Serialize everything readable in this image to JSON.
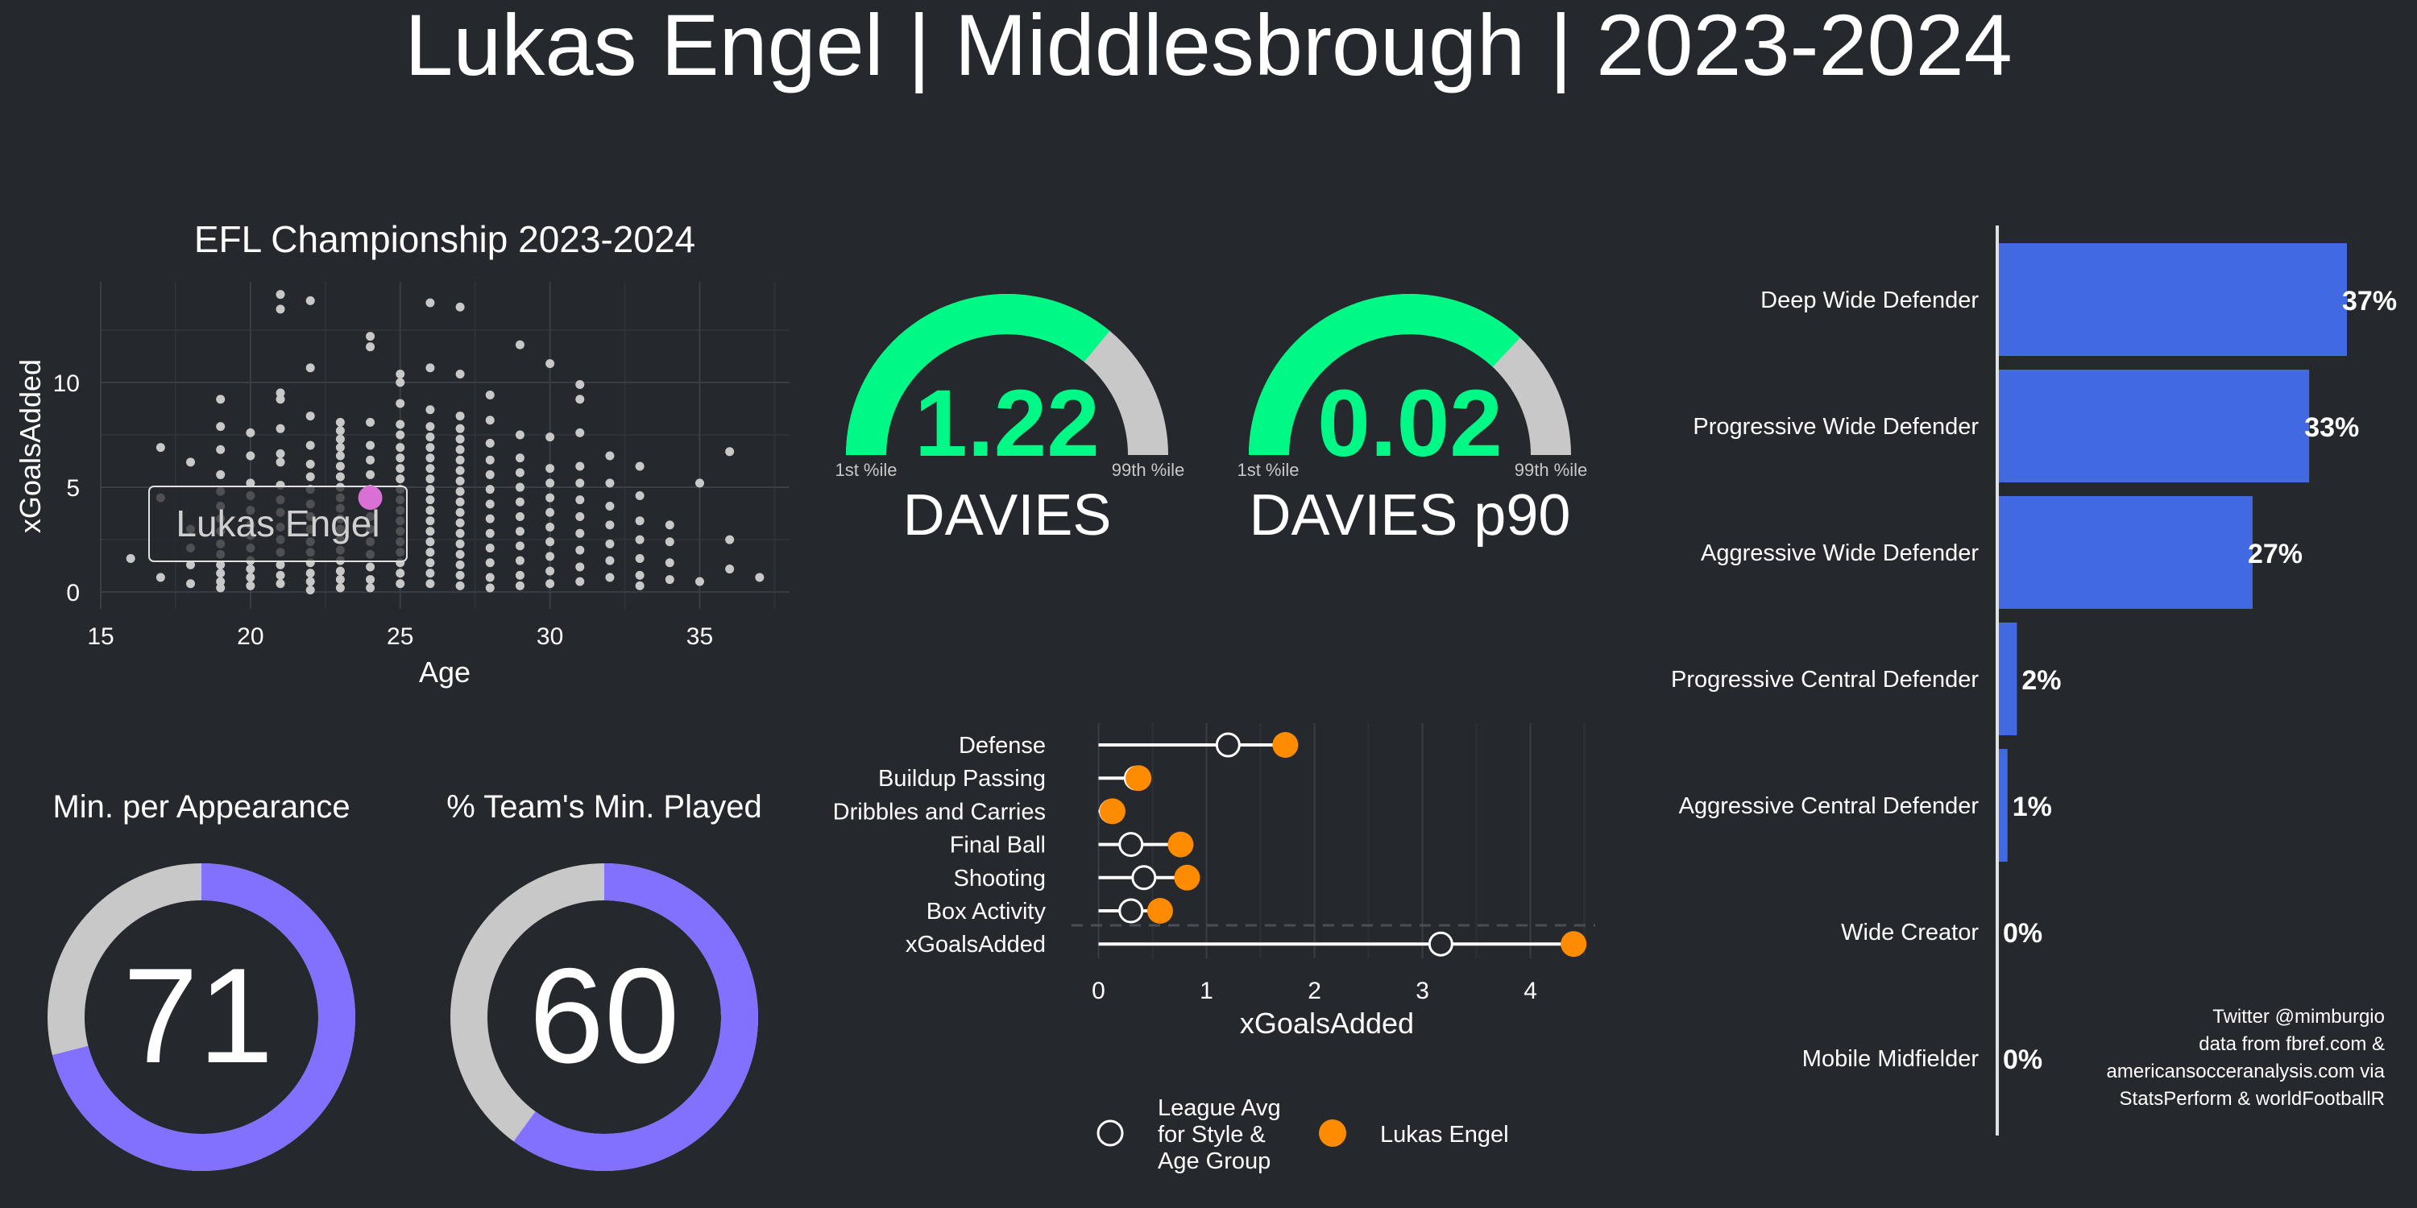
{
  "header": {
    "title": "Lukas Engel | Middlesbrough | 2023-2024"
  },
  "scatter_panel": {
    "title": "EFL Championship 2023-2024",
    "highlight_label": "Lukas Engel"
  },
  "gauges": [
    {
      "value_label": "1.22",
      "caption": "DAVIES",
      "min_label": "1st %ile",
      "max_label": "99th %ile",
      "percentile": 0.72
    },
    {
      "value_label": "0.02",
      "caption": "DAVIES p90",
      "min_label": "1st %ile",
      "max_label": "99th %ile",
      "percentile": 0.74
    }
  ],
  "donuts": [
    {
      "title": "Min. per Appearance",
      "value_label": "71",
      "percent": 71
    },
    {
      "title": "% Team's Min. Played",
      "value_label": "60",
      "percent": 60
    }
  ],
  "legend": {
    "league_avg": [
      "League Avg",
      "for Style &",
      "Age Group"
    ],
    "player": "Lukas Engel"
  },
  "source_note": [
    "Twitter @mimburgio",
    "data from fbref.com &",
    "americansocceranalysis.com via",
    "StatsPerform & worldFootballR"
  ],
  "colors": {
    "background": "#25282d",
    "gauge_fill": "#00f986",
    "gauge_track": "#c8c8c8",
    "donut_fill": "#8270ff",
    "donut_track": "#c8c8c8",
    "bar": "#4169e1",
    "player_dot": "#ff8c00",
    "highlight_dot": "#da70d6",
    "scatter_dot": "#c8c8c8"
  },
  "chart_data": [
    {
      "type": "scatter",
      "title": "EFL Championship 2023-2024",
      "xlabel": "Age",
      "ylabel": "xGoalsAdded",
      "xlim": [
        15,
        38
      ],
      "ylim": [
        -0.8,
        14.8
      ],
      "xticks": [
        15,
        20,
        25,
        30,
        35
      ],
      "yticks": [
        0,
        5,
        10
      ],
      "grid": true,
      "points": [
        [
          16,
          1.6
        ],
        [
          17,
          0.7
        ],
        [
          17,
          6.9
        ],
        [
          17,
          4.5
        ],
        [
          18,
          1.3
        ],
        [
          18,
          2.1
        ],
        [
          18,
          0.4
        ],
        [
          18,
          6.2
        ],
        [
          18,
          3.0
        ],
        [
          19,
          9.2
        ],
        [
          19,
          7.9
        ],
        [
          19,
          6.8
        ],
        [
          19,
          5.6
        ],
        [
          19,
          4.8
        ],
        [
          19,
          4.1
        ],
        [
          19,
          3.5
        ],
        [
          19,
          2.9
        ],
        [
          19,
          2.3
        ],
        [
          19,
          1.8
        ],
        [
          19,
          1.3
        ],
        [
          19,
          0.9
        ],
        [
          19,
          0.5
        ],
        [
          19,
          0.2
        ],
        [
          20,
          7.6
        ],
        [
          20,
          6.5
        ],
        [
          20,
          5.2
        ],
        [
          20,
          4.6
        ],
        [
          20,
          3.9
        ],
        [
          20,
          3.2
        ],
        [
          20,
          2.7
        ],
        [
          20,
          2.1
        ],
        [
          20,
          1.5
        ],
        [
          20,
          1.1
        ],
        [
          20,
          0.7
        ],
        [
          20,
          0.3
        ],
        [
          21,
          14.2
        ],
        [
          21,
          13.5
        ],
        [
          21,
          9.5
        ],
        [
          21,
          9.2
        ],
        [
          21,
          7.8
        ],
        [
          21,
          6.6
        ],
        [
          21,
          6.2
        ],
        [
          21,
          5.1
        ],
        [
          21,
          4.4
        ],
        [
          21,
          3.8
        ],
        [
          21,
          3.1
        ],
        [
          21,
          2.5
        ],
        [
          21,
          1.9
        ],
        [
          21,
          1.3
        ],
        [
          21,
          0.8
        ],
        [
          21,
          0.4
        ],
        [
          22,
          13.9
        ],
        [
          22,
          10.7
        ],
        [
          22,
          8.4
        ],
        [
          22,
          7.0
        ],
        [
          22,
          6.1
        ],
        [
          22,
          5.5
        ],
        [
          22,
          4.9
        ],
        [
          22,
          4.2
        ],
        [
          22,
          3.6
        ],
        [
          22,
          3.0
        ],
        [
          22,
          2.4
        ],
        [
          22,
          1.9
        ],
        [
          22,
          1.4
        ],
        [
          22,
          0.9
        ],
        [
          22,
          0.5
        ],
        [
          22,
          0.1
        ],
        [
          23,
          8.1
        ],
        [
          23,
          7.7
        ],
        [
          23,
          7.3
        ],
        [
          23,
          6.9
        ],
        [
          23,
          6.5
        ],
        [
          23,
          6.0
        ],
        [
          23,
          5.5
        ],
        [
          23,
          5.0
        ],
        [
          23,
          4.5
        ],
        [
          23,
          4.0
        ],
        [
          23,
          3.5
        ],
        [
          23,
          3.0
        ],
        [
          23,
          2.5
        ],
        [
          23,
          2.0
        ],
        [
          23,
          1.5
        ],
        [
          23,
          1.0
        ],
        [
          23,
          0.6
        ],
        [
          23,
          0.2
        ],
        [
          24,
          12.2
        ],
        [
          24,
          11.7
        ],
        [
          24,
          8.1
        ],
        [
          24,
          7.0
        ],
        [
          24,
          6.3
        ],
        [
          24,
          5.6
        ],
        [
          24,
          4.9
        ],
        [
          24,
          4.2
        ],
        [
          24,
          3.6
        ],
        [
          24,
          3.0
        ],
        [
          24,
          2.4
        ],
        [
          24,
          1.8
        ],
        [
          24,
          1.2
        ],
        [
          24,
          0.6
        ],
        [
          24,
          0.2
        ],
        [
          25,
          10.4
        ],
        [
          25,
          10.0
        ],
        [
          25,
          9.0
        ],
        [
          25,
          8.0
        ],
        [
          25,
          7.5
        ],
        [
          25,
          6.9
        ],
        [
          25,
          6.4
        ],
        [
          25,
          5.9
        ],
        [
          25,
          5.4
        ],
        [
          25,
          4.9
        ],
        [
          25,
          4.4
        ],
        [
          25,
          3.9
        ],
        [
          25,
          3.4
        ],
        [
          25,
          2.9
        ],
        [
          25,
          2.4
        ],
        [
          25,
          1.9
        ],
        [
          25,
          1.4
        ],
        [
          25,
          0.9
        ],
        [
          25,
          0.4
        ],
        [
          26,
          13.8
        ],
        [
          26,
          10.7
        ],
        [
          26,
          8.7
        ],
        [
          26,
          7.9
        ],
        [
          26,
          7.4
        ],
        [
          26,
          6.9
        ],
        [
          26,
          6.4
        ],
        [
          26,
          5.9
        ],
        [
          26,
          5.4
        ],
        [
          26,
          4.9
        ],
        [
          26,
          4.4
        ],
        [
          26,
          3.9
        ],
        [
          26,
          3.4
        ],
        [
          26,
          2.9
        ],
        [
          26,
          2.4
        ],
        [
          26,
          1.9
        ],
        [
          26,
          1.4
        ],
        [
          26,
          0.9
        ],
        [
          26,
          0.4
        ],
        [
          27,
          13.6
        ],
        [
          27,
          10.4
        ],
        [
          27,
          8.4
        ],
        [
          27,
          7.8
        ],
        [
          27,
          7.3
        ],
        [
          27,
          6.8
        ],
        [
          27,
          6.3
        ],
        [
          27,
          5.8
        ],
        [
          27,
          5.3
        ],
        [
          27,
          4.8
        ],
        [
          27,
          4.3
        ],
        [
          27,
          3.8
        ],
        [
          27,
          3.3
        ],
        [
          27,
          2.8
        ],
        [
          27,
          2.3
        ],
        [
          27,
          1.8
        ],
        [
          27,
          1.3
        ],
        [
          27,
          0.8
        ],
        [
          27,
          0.3
        ],
        [
          28,
          9.4
        ],
        [
          28,
          8.2
        ],
        [
          28,
          7.1
        ],
        [
          28,
          6.3
        ],
        [
          28,
          5.6
        ],
        [
          28,
          4.9
        ],
        [
          28,
          4.2
        ],
        [
          28,
          3.5
        ],
        [
          28,
          2.8
        ],
        [
          28,
          2.1
        ],
        [
          28,
          1.4
        ],
        [
          28,
          0.7
        ],
        [
          28,
          0.2
        ],
        [
          29,
          11.8
        ],
        [
          29,
          7.5
        ],
        [
          29,
          6.4
        ],
        [
          29,
          5.7
        ],
        [
          29,
          5.0
        ],
        [
          29,
          4.3
        ],
        [
          29,
          3.6
        ],
        [
          29,
          2.9
        ],
        [
          29,
          2.2
        ],
        [
          29,
          1.5
        ],
        [
          29,
          0.8
        ],
        [
          29,
          0.3
        ],
        [
          30,
          10.9
        ],
        [
          30,
          7.4
        ],
        [
          30,
          5.9
        ],
        [
          30,
          5.2
        ],
        [
          30,
          4.5
        ],
        [
          30,
          3.8
        ],
        [
          30,
          3.1
        ],
        [
          30,
          2.4
        ],
        [
          30,
          1.7
        ],
        [
          30,
          1.0
        ],
        [
          30,
          0.4
        ],
        [
          31,
          9.9
        ],
        [
          31,
          9.2
        ],
        [
          31,
          7.6
        ],
        [
          31,
          6.0
        ],
        [
          31,
          5.2
        ],
        [
          31,
          4.4
        ],
        [
          31,
          3.6
        ],
        [
          31,
          2.8
        ],
        [
          31,
          2.0
        ],
        [
          31,
          1.2
        ],
        [
          31,
          0.5
        ],
        [
          32,
          6.5
        ],
        [
          32,
          5.2
        ],
        [
          32,
          4.1
        ],
        [
          32,
          3.2
        ],
        [
          32,
          2.3
        ],
        [
          32,
          1.5
        ],
        [
          32,
          0.7
        ],
        [
          33,
          6.0
        ],
        [
          33,
          4.6
        ],
        [
          33,
          3.4
        ],
        [
          33,
          2.5
        ],
        [
          33,
          1.6
        ],
        [
          33,
          0.8
        ],
        [
          33,
          0.3
        ],
        [
          34,
          3.2
        ],
        [
          34,
          2.4
        ],
        [
          34,
          1.4
        ],
        [
          34,
          0.6
        ],
        [
          35,
          5.2
        ],
        [
          35,
          0.5
        ],
        [
          36,
          6.7
        ],
        [
          36,
          2.5
        ],
        [
          36,
          1.1
        ],
        [
          37,
          0.7
        ]
      ],
      "highlight": {
        "name": "Lukas Engel",
        "x": 24,
        "y": 4.5
      }
    },
    {
      "type": "bar",
      "orientation": "horizontal",
      "categories": [
        "Deep Wide Defender",
        "Progressive Wide Defender",
        "Aggressive Wide Defender",
        "Progressive Central Defender",
        "Aggressive Central Defender",
        "Wide Creator",
        "Mobile Midfielder"
      ],
      "values": [
        37,
        33,
        27,
        2,
        1,
        0,
        0
      ],
      "value_labels": [
        "37%",
        "33%",
        "27%",
        "2%",
        "1%",
        "0%",
        "0%"
      ],
      "xlim": [
        0,
        37
      ]
    },
    {
      "type": "dot",
      "xlabel": "xGoalsAdded",
      "xlim": [
        -0.25,
        4.6
      ],
      "xticks": [
        0,
        1,
        2,
        3,
        4
      ],
      "categories": [
        "Defense",
        "Buildup Passing",
        "Dribbles and Carries",
        "Final Ball",
        "Shooting",
        "Box Activity",
        "xGoalsAdded"
      ],
      "series": [
        {
          "name": "League Avg for Style & Age Group",
          "values": [
            1.2,
            0.35,
            0.12,
            0.3,
            0.42,
            0.3,
            3.17
          ]
        },
        {
          "name": "Lukas Engel",
          "values": [
            1.73,
            0.37,
            0.13,
            0.76,
            0.82,
            0.57,
            4.4
          ]
        }
      ],
      "grid": true
    }
  ]
}
